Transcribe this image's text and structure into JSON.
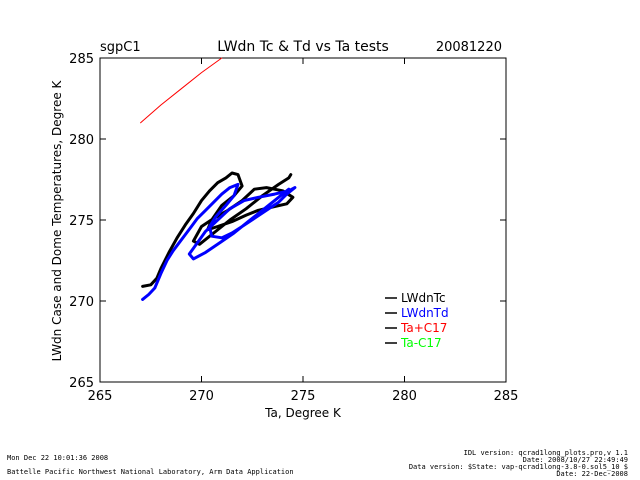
{
  "chart_data": {
    "type": "line",
    "title": "LWdn Tc & Td vs Ta tests",
    "site": "sgpC1",
    "date": "20081220",
    "xlabel": "Ta, Degree K",
    "ylabel": "LWdn Case and Dome Temperatures, Degree K",
    "xlim": [
      265,
      285
    ],
    "ylim": [
      265,
      285
    ],
    "xticks": [
      265,
      270,
      275,
      280,
      285
    ],
    "yticks": [
      265,
      270,
      275,
      280,
      285
    ],
    "legend_position": "lower-right",
    "series": [
      {
        "name": "LWdnTc",
        "color": "#000000",
        "x": [
          267.1,
          267.5,
          267.8,
          268.0,
          268.4,
          268.8,
          269.2,
          269.6,
          270.0,
          270.4,
          270.8,
          271.2,
          271.5,
          271.8,
          272.0,
          271.6,
          271.0,
          270.5,
          270.3,
          270.8,
          271.5,
          272.2,
          272.8,
          273.5,
          274.2,
          274.5,
          274.0,
          273.2,
          272.6,
          272.0,
          271.3,
          270.6,
          270.0,
          269.6,
          269.9,
          270.6,
          271.4,
          272.2,
          273.0,
          273.8,
          274.3,
          274.4
        ],
        "y": [
          270.9,
          271.0,
          271.4,
          272.0,
          273.0,
          273.9,
          274.7,
          275.4,
          276.2,
          276.8,
          277.3,
          277.6,
          277.9,
          277.8,
          277.1,
          276.5,
          275.9,
          275.0,
          274.4,
          274.6,
          274.9,
          275.3,
          275.6,
          275.8,
          276.0,
          276.4,
          276.8,
          277.0,
          276.9,
          276.2,
          275.6,
          275.1,
          274.6,
          273.7,
          273.5,
          274.2,
          275.0,
          275.7,
          276.5,
          277.2,
          277.6,
          277.8
        ]
      },
      {
        "name": "LWdnTd",
        "color": "#0000ff",
        "x": [
          267.1,
          267.4,
          267.7,
          268.0,
          268.3,
          268.6,
          268.9,
          269.2,
          269.5,
          269.8,
          270.2,
          270.6,
          271.0,
          271.4,
          271.8,
          271.6,
          271.2,
          270.7,
          270.4,
          270.5,
          271.0,
          271.5,
          272.0,
          272.6,
          273.2,
          273.8,
          274.2,
          274.6,
          274.3,
          273.6,
          272.8,
          272.1,
          271.4,
          270.8,
          270.2,
          269.8,
          269.4,
          269.6,
          270.2,
          270.9,
          271.6,
          272.3,
          273.0,
          273.7,
          274.3
        ],
        "y": [
          270.1,
          270.4,
          270.8,
          271.7,
          272.5,
          273.1,
          273.6,
          274.1,
          274.6,
          275.1,
          275.6,
          276.1,
          276.6,
          277.0,
          277.2,
          276.5,
          275.9,
          275.2,
          274.6,
          274.0,
          273.9,
          274.2,
          274.6,
          275.1,
          275.6,
          276.1,
          276.6,
          277.0,
          276.8,
          276.6,
          276.4,
          276.2,
          275.7,
          275.0,
          274.3,
          273.6,
          272.9,
          272.6,
          273.0,
          273.6,
          274.2,
          274.9,
          275.6,
          276.3,
          276.9
        ]
      },
      {
        "name": "Ta+C17",
        "color": "#ff0000",
        "x": [
          267.0,
          268.0,
          269.0,
          270.0,
          271.0
        ],
        "y": [
          281.0,
          282.1,
          283.1,
          284.1,
          285.0
        ]
      },
      {
        "name": "Ta-C17",
        "color": "#00ff00",
        "x": [],
        "y": []
      }
    ]
  },
  "footer": {
    "timestamp": "Mon Dec 22 10:01:36 2008",
    "institution": "Battelle Pacific Northwest National Laboratory, Arm Data Application",
    "idl_version": "IDL version: qcrad1long_plots.pro,v 1.1",
    "idl_date": "Date: 2008/10/27 22:49:49",
    "data_version": "Data version: $State: vap-qcrad1long-3.8-0.sol5_10 $",
    "data_date": "Date: 22-Dec-2008"
  }
}
